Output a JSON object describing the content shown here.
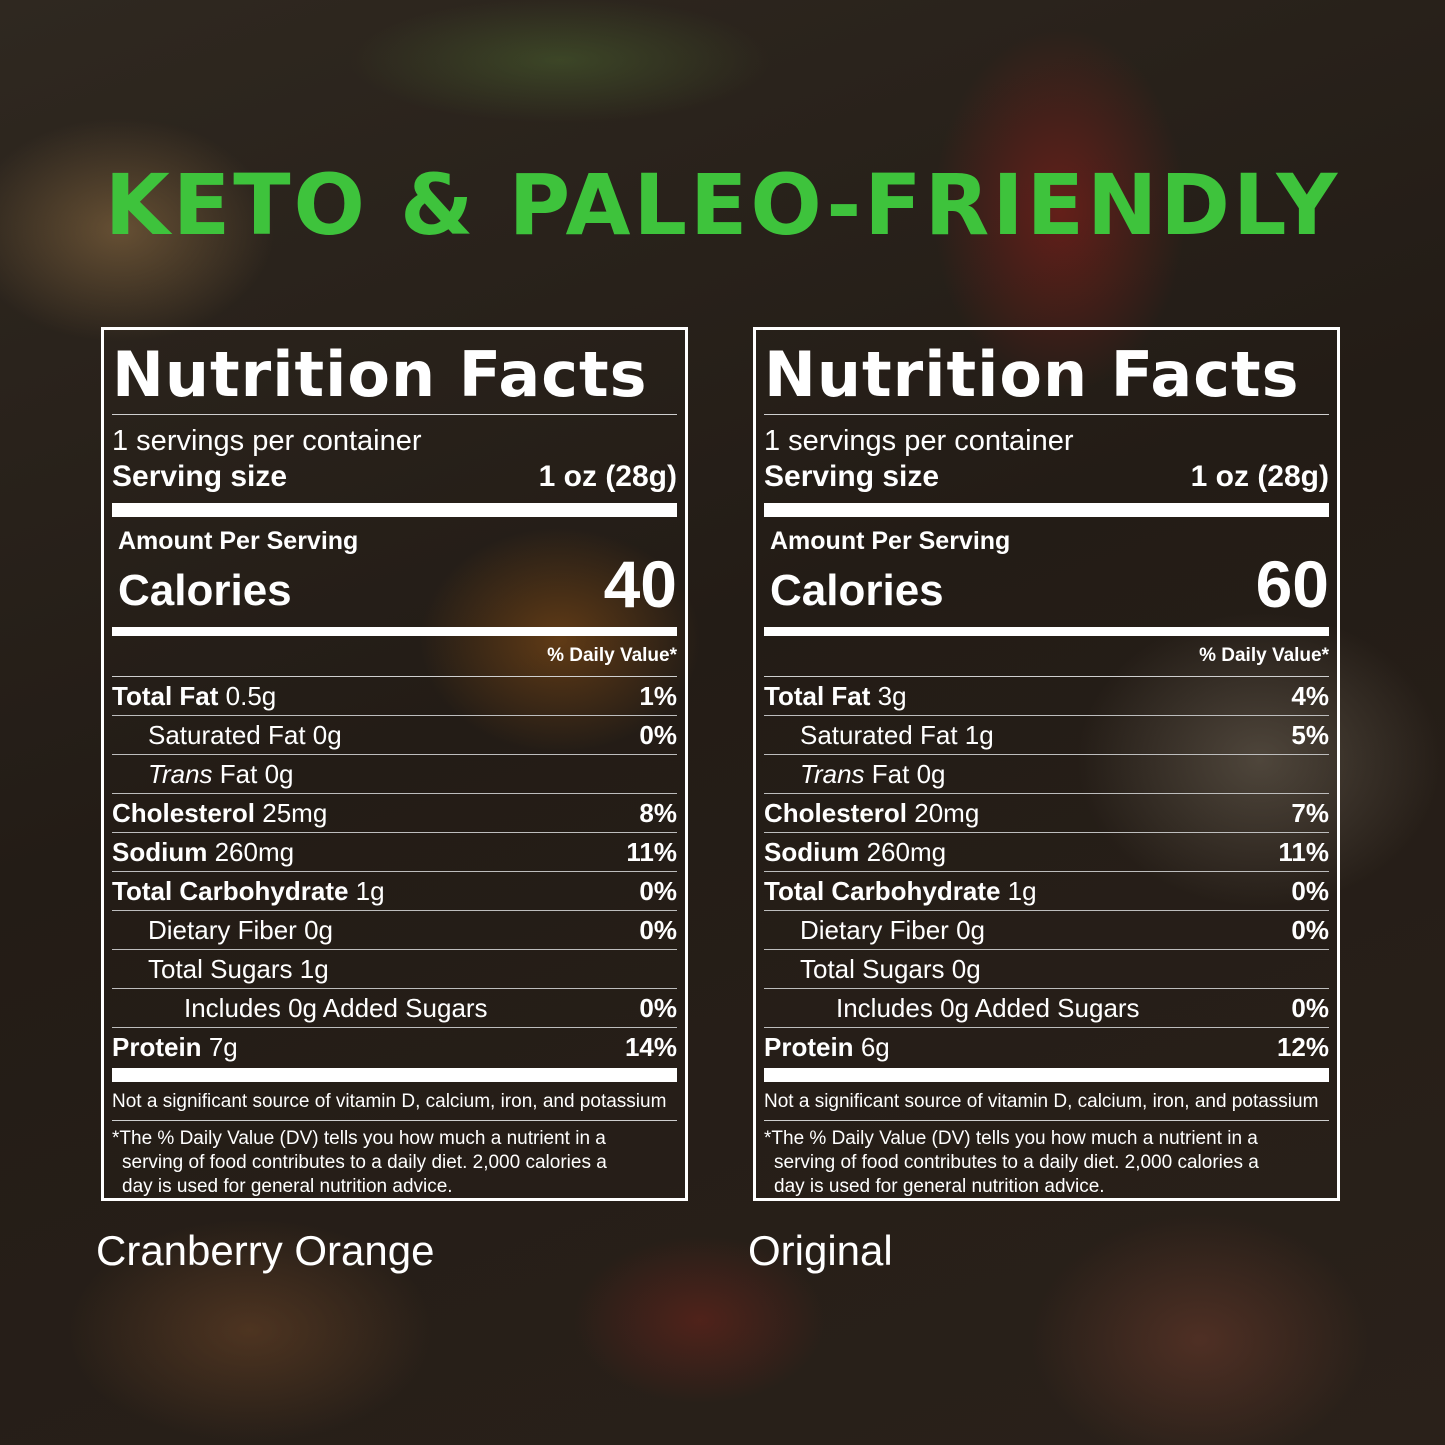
{
  "headline": "KETO & PALEO-FRIENDLY",
  "colors": {
    "headline": "#3ec33c",
    "text": "#ffffff"
  },
  "common": {
    "title": "Nutrition Facts",
    "servings_per_container": "1 servings per container",
    "serving_size_label": "Serving size",
    "serving_size_value": "1 oz (28g)",
    "amount_per_serving": "Amount Per Serving",
    "calories_label": "Calories",
    "daily_value_header": "% Daily Value*",
    "note_1": "Not a significant source of vitamin D, calcium, iron, and potassium",
    "note_2_line1": "*The % Daily Value (DV) tells you how much a nutrient in a",
    "note_2_line2": "serving of food contributes to a daily diet. 2,000 calories a",
    "note_2_line3": "day is used for general nutrition advice."
  },
  "products": [
    {
      "caption": "Cranberry Orange",
      "calories": "40",
      "rows": {
        "total_fat": {
          "label": "Total Fat",
          "amount": "0.5g",
          "dv": "1%"
        },
        "saturated_fat": {
          "label": "Saturated Fat",
          "amount": "0g",
          "dv": "0%"
        },
        "trans_fat": {
          "label_italic": "Trans",
          "label": "Fat",
          "amount": "0g"
        },
        "cholesterol": {
          "label": "Cholesterol",
          "amount": "25mg",
          "dv": "8%"
        },
        "sodium": {
          "label": "Sodium",
          "amount": "260mg",
          "dv": "11%"
        },
        "total_carb": {
          "label": "Total Carbohydrate",
          "amount": "1g",
          "dv": "0%"
        },
        "dietary_fiber": {
          "label": "Dietary Fiber",
          "amount": "0g",
          "dv": "0%"
        },
        "total_sugars": {
          "label": "Total Sugars",
          "amount": "1g"
        },
        "added_sugars": {
          "label": "Includes 0g Added Sugars",
          "dv": "0%"
        },
        "protein": {
          "label": "Protein",
          "amount": "7g",
          "dv": "14%"
        }
      }
    },
    {
      "caption": "Original",
      "calories": "60",
      "rows": {
        "total_fat": {
          "label": "Total Fat",
          "amount": "3g",
          "dv": "4%"
        },
        "saturated_fat": {
          "label": "Saturated Fat",
          "amount": "1g",
          "dv": "5%"
        },
        "trans_fat": {
          "label_italic": "Trans",
          "label": "Fat",
          "amount": "0g"
        },
        "cholesterol": {
          "label": "Cholesterol",
          "amount": "20mg",
          "dv": "7%"
        },
        "sodium": {
          "label": "Sodium",
          "amount": "260mg",
          "dv": "11%"
        },
        "total_carb": {
          "label": "Total Carbohydrate",
          "amount": "1g",
          "dv": "0%"
        },
        "dietary_fiber": {
          "label": "Dietary Fiber",
          "amount": "0g",
          "dv": "0%"
        },
        "total_sugars": {
          "label": "Total Sugars",
          "amount": "0g"
        },
        "added_sugars": {
          "label": "Includes 0g Added Sugars",
          "dv": "0%"
        },
        "protein": {
          "label": "Protein",
          "amount": "6g",
          "dv": "12%"
        }
      }
    }
  ]
}
